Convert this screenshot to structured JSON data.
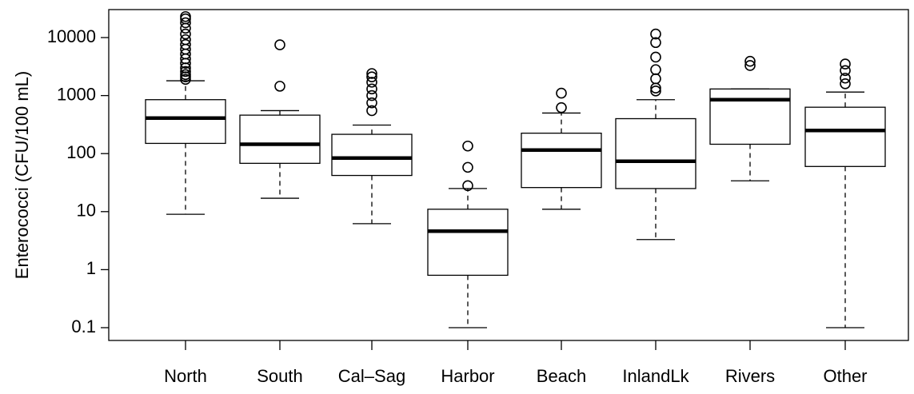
{
  "chart_data": {
    "type": "box",
    "title": "",
    "xlabel": "",
    "ylabel": "Enterococci (CFU/100 mL)",
    "yscale": "log",
    "ylim": [
      0.07,
      30000
    ],
    "yticks": [
      {
        "value": 0.1,
        "label": "0.1"
      },
      {
        "value": 1,
        "label": "1"
      },
      {
        "value": 10,
        "label": "10"
      },
      {
        "value": 100,
        "label": "100"
      },
      {
        "value": 1000,
        "label": "1000"
      },
      {
        "value": 10000,
        "label": "10000"
      }
    ],
    "grid": false,
    "categories": [
      "North",
      "South",
      "Cal–Sag",
      "Harbor",
      "Beach",
      "InlandLk",
      "Rivers",
      "Other"
    ],
    "boxes": [
      {
        "whisker_low": 9,
        "q1": 150,
        "median": 410,
        "q3": 850,
        "whisker_high": 1800,
        "outliers": [
          1900,
          2100,
          2300,
          2600,
          3000,
          3600,
          4300,
          5200,
          6300,
          7600,
          9200,
          11500,
          14500,
          18000,
          21000,
          23000
        ]
      },
      {
        "whisker_low": 17,
        "q1": 68,
        "median": 145,
        "q3": 460,
        "whisker_high": 550,
        "outliers": [
          1450,
          7500
        ]
      },
      {
        "whisker_low": 6.2,
        "q1": 42,
        "median": 84,
        "q3": 215,
        "whisker_high": 310,
        "outliers": [
          550,
          750,
          1000,
          1300,
          1700,
          2100,
          2400
        ]
      },
      {
        "whisker_low": 0.1,
        "q1": 0.8,
        "median": 4.6,
        "q3": 11,
        "whisker_high": 25,
        "outliers": [
          28,
          58,
          135
        ]
      },
      {
        "whisker_low": 11,
        "q1": 26,
        "median": 115,
        "q3": 225,
        "whisker_high": 500,
        "outliers": [
          620,
          1100
        ]
      },
      {
        "whisker_low": 3.3,
        "q1": 25,
        "median": 74,
        "q3": 400,
        "whisker_high": 850,
        "outliers": [
          1200,
          1350,
          1950,
          2800,
          4600,
          8200,
          11500
        ]
      },
      {
        "whisker_low": 34,
        "q1": 145,
        "median": 850,
        "q3": 1300,
        "whisker_high": 1300,
        "outliers": [
          3300,
          3900
        ]
      },
      {
        "whisker_low": 0.1,
        "q1": 60,
        "median": 250,
        "q3": 630,
        "whisker_high": 1150,
        "outliers": [
          1600,
          2000,
          2700,
          3500
        ]
      }
    ]
  }
}
